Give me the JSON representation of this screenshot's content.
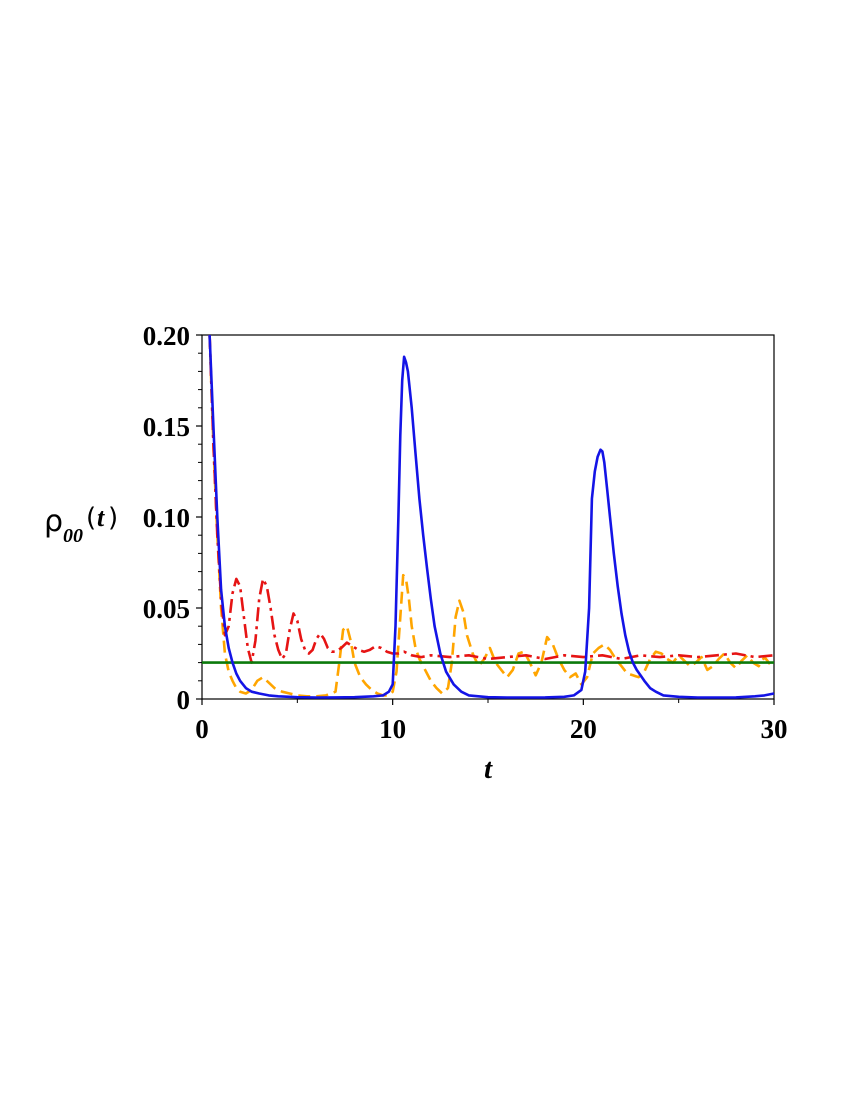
{
  "chart_data": {
    "type": "line",
    "title": "",
    "xlabel": "t",
    "ylabel": {
      "symbol": "ρ",
      "subscript": "00",
      "open": "(",
      "arg": "t",
      "close": ")"
    },
    "xlim": [
      0,
      30
    ],
    "ylim": [
      0,
      0.2
    ],
    "xticks": [
      0,
      10,
      20,
      30
    ],
    "xtick_labels": [
      "0",
      "10",
      "20",
      "30"
    ],
    "yticks": [
      0,
      0.05,
      0.1,
      0.15,
      0.2
    ],
    "ytick_labels": [
      "0",
      "0.05",
      "0.10",
      "0.15",
      "0.20"
    ],
    "grid": false,
    "legend": "none",
    "series": [
      {
        "color": "#1414e6",
        "style": "solid",
        "x": [
          0.4,
          0.6,
          0.8,
          1.0,
          1.2,
          1.4,
          1.6,
          1.8,
          2.0,
          2.3,
          2.6,
          3.0,
          3.5,
          4.0,
          5.0,
          6.0,
          7.0,
          8.0,
          9.0,
          9.5,
          9.8,
          10.0,
          10.15,
          10.3,
          10.4,
          10.5,
          10.6,
          10.7,
          10.8,
          11.0,
          11.2,
          11.4,
          11.6,
          11.8,
          12.0,
          12.2,
          12.5,
          12.8,
          13.2,
          13.6,
          14.0,
          15.0,
          16.0,
          17.0,
          18.0,
          19.0,
          19.5,
          19.9,
          20.1,
          20.3,
          20.45,
          20.6,
          20.75,
          20.9,
          21.0,
          21.1,
          21.25,
          21.4,
          21.6,
          21.8,
          22.0,
          22.2,
          22.4,
          22.6,
          22.8,
          23.0,
          23.2,
          23.5,
          23.8,
          24.2,
          25.0,
          26.0,
          27.0,
          28.0,
          29.0,
          29.5,
          30.0
        ],
        "y": [
          0.2,
          0.15,
          0.1,
          0.06,
          0.04,
          0.028,
          0.02,
          0.014,
          0.01,
          0.006,
          0.004,
          0.003,
          0.002,
          0.0015,
          0.001,
          0.0008,
          0.0009,
          0.001,
          0.0015,
          0.002,
          0.004,
          0.008,
          0.04,
          0.1,
          0.145,
          0.175,
          0.188,
          0.185,
          0.18,
          0.16,
          0.135,
          0.11,
          0.09,
          0.072,
          0.055,
          0.04,
          0.025,
          0.015,
          0.008,
          0.004,
          0.002,
          0.001,
          0.0008,
          0.0008,
          0.0009,
          0.0012,
          0.002,
          0.005,
          0.015,
          0.05,
          0.11,
          0.125,
          0.133,
          0.137,
          0.136,
          0.13,
          0.115,
          0.1,
          0.08,
          0.062,
          0.047,
          0.035,
          0.026,
          0.02,
          0.016,
          0.013,
          0.01,
          0.006,
          0.004,
          0.002,
          0.0012,
          0.0008,
          0.0008,
          0.0009,
          0.0015,
          0.002,
          0.003
        ]
      },
      {
        "color": "#e61414",
        "style": "dashdot",
        "x": [
          0.4,
          0.6,
          0.8,
          1.0,
          1.2,
          1.4,
          1.6,
          1.8,
          2.0,
          2.2,
          2.4,
          2.6,
          2.8,
          3.0,
          3.2,
          3.4,
          3.6,
          3.8,
          4.0,
          4.2,
          4.4,
          4.6,
          4.8,
          5.0,
          5.2,
          5.4,
          5.6,
          5.8,
          6.0,
          6.2,
          6.4,
          6.6,
          6.8,
          7.0,
          7.3,
          7.6,
          7.9,
          8.2,
          8.5,
          8.8,
          9.1,
          9.4,
          9.7,
          10.0,
          10.3,
          10.6,
          11.0,
          11.5,
          12.0,
          13.0,
          14.0,
          15.0,
          16.0,
          17.0,
          18.0,
          19.0,
          20.0,
          21.0,
          22.0,
          23.0,
          24.0,
          25.0,
          26.0,
          27.0,
          28.0,
          29.0,
          30.0
        ],
        "y": [
          0.2,
          0.14,
          0.09,
          0.055,
          0.035,
          0.04,
          0.058,
          0.066,
          0.062,
          0.045,
          0.028,
          0.02,
          0.032,
          0.055,
          0.066,
          0.062,
          0.05,
          0.035,
          0.027,
          0.022,
          0.025,
          0.038,
          0.047,
          0.043,
          0.033,
          0.027,
          0.025,
          0.027,
          0.033,
          0.036,
          0.033,
          0.028,
          0.026,
          0.026,
          0.028,
          0.031,
          0.029,
          0.027,
          0.026,
          0.027,
          0.029,
          0.028,
          0.026,
          0.025,
          0.025,
          0.026,
          0.024,
          0.023,
          0.024,
          0.023,
          0.024,
          0.022,
          0.023,
          0.024,
          0.022,
          0.024,
          0.023,
          0.024,
          0.022,
          0.024,
          0.023,
          0.024,
          0.023,
          0.024,
          0.025,
          0.023,
          0.024
        ]
      },
      {
        "color": "#ffa500",
        "style": "dashed",
        "x": [
          0.4,
          0.6,
          0.8,
          1.0,
          1.2,
          1.4,
          1.6,
          1.8,
          2.0,
          2.3,
          2.6,
          2.9,
          3.2,
          3.5,
          3.8,
          4.2,
          4.6,
          5.0,
          5.5,
          6.0,
          6.5,
          7.0,
          7.2,
          7.4,
          7.6,
          7.8,
          8.0,
          8.3,
          8.6,
          8.9,
          9.2,
          9.5,
          9.8,
          10.0,
          10.2,
          10.4,
          10.55,
          10.7,
          10.85,
          11.0,
          11.2,
          11.4,
          11.6,
          11.8,
          12.0,
          12.3,
          12.6,
          12.9,
          13.1,
          13.3,
          13.5,
          13.7,
          13.9,
          14.2,
          14.5,
          14.8,
          15.1,
          15.4,
          15.7,
          16.0,
          16.3,
          16.6,
          16.9,
          17.2,
          17.5,
          17.8,
          18.1,
          18.4,
          18.7,
          19.0,
          19.3,
          19.6,
          19.9,
          20.2,
          20.5,
          20.8,
          21.1,
          21.4,
          21.7,
          22.0,
          22.3,
          22.6,
          22.9,
          23.2,
          23.5,
          23.8,
          24.1,
          24.4,
          24.7,
          25.0,
          25.3,
          25.6,
          25.9,
          26.2,
          26.5,
          26.8,
          27.1,
          27.4,
          27.7,
          28.0,
          28.3,
          28.6,
          28.9,
          29.2,
          29.5,
          29.8,
          30.0
        ],
        "y": [
          0.2,
          0.14,
          0.09,
          0.05,
          0.025,
          0.015,
          0.01,
          0.006,
          0.004,
          0.003,
          0.005,
          0.01,
          0.012,
          0.009,
          0.006,
          0.004,
          0.003,
          0.002,
          0.0015,
          0.0015,
          0.002,
          0.004,
          0.02,
          0.038,
          0.04,
          0.032,
          0.02,
          0.012,
          0.008,
          0.005,
          0.003,
          0.002,
          0.002,
          0.004,
          0.015,
          0.045,
          0.068,
          0.066,
          0.055,
          0.04,
          0.028,
          0.022,
          0.018,
          0.014,
          0.01,
          0.006,
          0.003,
          0.006,
          0.02,
          0.045,
          0.054,
          0.048,
          0.035,
          0.025,
          0.018,
          0.022,
          0.028,
          0.02,
          0.016,
          0.012,
          0.016,
          0.025,
          0.026,
          0.02,
          0.013,
          0.02,
          0.034,
          0.03,
          0.022,
          0.016,
          0.012,
          0.014,
          0.008,
          0.012,
          0.025,
          0.028,
          0.03,
          0.027,
          0.022,
          0.018,
          0.014,
          0.013,
          0.012,
          0.015,
          0.022,
          0.026,
          0.025,
          0.022,
          0.02,
          0.024,
          0.021,
          0.018,
          0.02,
          0.023,
          0.016,
          0.018,
          0.022,
          0.025,
          0.02,
          0.017,
          0.021,
          0.024,
          0.02,
          0.018,
          0.023,
          0.019,
          0.021
        ]
      },
      {
        "color": "#0b7a0b",
        "style": "solid",
        "x": [
          0,
          30
        ],
        "y": [
          0.02,
          0.02
        ]
      }
    ]
  }
}
